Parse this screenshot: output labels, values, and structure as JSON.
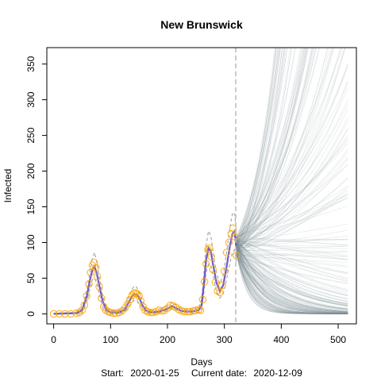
{
  "chart_data": {
    "type": "line",
    "title": "New Brunswick",
    "xlabel": "Days",
    "ylabel": "Infected",
    "subtitle_start_label": "Start:",
    "subtitle_start_value": "2020-01-25",
    "subtitle_current_label": "Current date:",
    "subtitle_current_value": "2020-12-09",
    "xlim": [
      -12,
      532
    ],
    "ylim": [
      -14,
      373
    ],
    "xticks": [
      0,
      100,
      200,
      300,
      400,
      500
    ],
    "yticks": [
      0,
      50,
      100,
      150,
      200,
      250,
      300,
      350
    ],
    "current_day": 320,
    "colors": {
      "observed_points": "#FFA500",
      "fit_line": "#6A5ACD",
      "band_line": "#9A9A9A",
      "current_marker": "#BEBEBE",
      "projections": "#7B8B92"
    },
    "observed": {
      "x": [
        0,
        10,
        20,
        30,
        40,
        45,
        50,
        54,
        58,
        62,
        65,
        68,
        71,
        74,
        77,
        80,
        84,
        88,
        92,
        96,
        100,
        105,
        110,
        115,
        120,
        125,
        130,
        134,
        138,
        141,
        144,
        147,
        150,
        153,
        157,
        161,
        165,
        170,
        175,
        180,
        185,
        190,
        195,
        200,
        205,
        210,
        215,
        220,
        225,
        230,
        235,
        240,
        245,
        250,
        255,
        258,
        262,
        265,
        268,
        271,
        274,
        277,
        280,
        284,
        288,
        292,
        296,
        300,
        304,
        308,
        312,
        315,
        318,
        321
      ],
      "y": [
        0,
        0,
        0,
        0,
        1,
        2,
        5,
        12,
        25,
        42,
        58,
        68,
        72,
        65,
        52,
        38,
        22,
        10,
        5,
        3,
        2,
        1,
        1,
        2,
        4,
        8,
        14,
        20,
        26,
        29,
        29,
        28,
        25,
        18,
        10,
        5,
        3,
        2,
        2,
        3,
        5,
        4,
        5,
        8,
        12,
        11,
        9,
        6,
        4,
        3,
        3,
        3,
        4,
        5,
        6,
        5,
        20,
        45,
        70,
        90,
        92,
        80,
        62,
        44,
        32,
        30,
        40,
        60,
        86,
        100,
        112,
        120,
        108,
        82
      ]
    },
    "fit": {
      "x": [
        0,
        40,
        50,
        58,
        64,
        68,
        72,
        76,
        80,
        86,
        92,
        100,
        115,
        125,
        132,
        138,
        142,
        146,
        150,
        156,
        162,
        170,
        185,
        200,
        208,
        215,
        225,
        240,
        255,
        260,
        264,
        268,
        272,
        276,
        280,
        286,
        292,
        298,
        304,
        310,
        314,
        318,
        321
      ],
      "y": [
        0,
        1,
        5,
        24,
        48,
        62,
        66,
        56,
        40,
        18,
        6,
        2,
        2,
        6,
        16,
        25,
        28,
        27,
        23,
        12,
        5,
        2,
        3,
        7,
        11,
        8,
        4,
        3,
        5,
        12,
        42,
        76,
        92,
        88,
        70,
        44,
        32,
        40,
        66,
        96,
        112,
        116,
        92
      ]
    },
    "band_upper": {
      "x": [
        0,
        40,
        50,
        58,
        64,
        68,
        72,
        76,
        80,
        86,
        92,
        100,
        115,
        125,
        132,
        138,
        142,
        146,
        150,
        156,
        162,
        170,
        185,
        200,
        208,
        215,
        225,
        240,
        255,
        260,
        264,
        268,
        272,
        276,
        280,
        286,
        292,
        298,
        304,
        310,
        314,
        318,
        321
      ],
      "y": [
        1,
        2,
        8,
        32,
        60,
        78,
        86,
        72,
        52,
        26,
        10,
        4,
        4,
        10,
        24,
        35,
        39,
        37,
        31,
        18,
        8,
        4,
        5,
        11,
        16,
        12,
        7,
        5,
        8,
        20,
        56,
        96,
        116,
        110,
        88,
        58,
        42,
        54,
        86,
        122,
        140,
        142,
        112
      ]
    },
    "band_lower": {
      "x": [
        0,
        40,
        50,
        58,
        64,
        68,
        72,
        76,
        80,
        86,
        92,
        100,
        115,
        125,
        132,
        138,
        142,
        146,
        150,
        156,
        162,
        170,
        185,
        200,
        208,
        215,
        225,
        240,
        255,
        260,
        264,
        268,
        272,
        276,
        280,
        286,
        292,
        298,
        304,
        310,
        314,
        318,
        321
      ],
      "y": [
        0,
        0,
        2,
        16,
        36,
        48,
        50,
        42,
        28,
        10,
        3,
        0,
        0,
        3,
        10,
        17,
        19,
        18,
        15,
        7,
        2,
        0,
        1,
        4,
        7,
        5,
        2,
        1,
        2,
        6,
        30,
        58,
        70,
        68,
        54,
        32,
        22,
        28,
        48,
        72,
        86,
        90,
        72
      ]
    },
    "projections": {
      "count": 260,
      "start_x": 321,
      "end_x": 520,
      "start_y": 95,
      "growth_range": [
        -0.06,
        0.02
      ]
    }
  }
}
